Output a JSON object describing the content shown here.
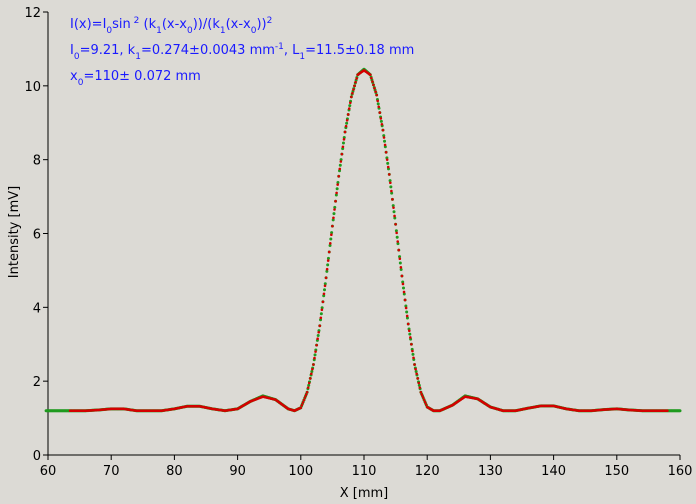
{
  "chart_data": {
    "type": "scatter",
    "xlabel": "X [mm]",
    "ylabel": "Intensity [mV]",
    "xlim": [
      60,
      160
    ],
    "ylim": [
      0,
      12
    ],
    "xticks": [
      60,
      70,
      80,
      90,
      100,
      110,
      120,
      130,
      140,
      150,
      160
    ],
    "yticks": [
      0,
      2,
      4,
      6,
      8,
      10,
      12
    ],
    "grid": false,
    "colors": {
      "data": "#1f9a1f",
      "fit": "#d40000",
      "annotation": "#1a1aff",
      "background": "#dcdad5"
    },
    "annotations": {
      "line1": {
        "a": "I(x)=I",
        "a_sub": "0",
        "b": "sin",
        "b_sup": " 2",
        "c": " (k",
        "c_sub": "1",
        "d": "(x-x",
        "d_sub": "0",
        "e": "))/(k",
        "e_sub": "1",
        "f": "(x-x",
        "f_sub": "0",
        "g": "))",
        "g_sup": "2"
      },
      "line2": {
        "a": "I",
        "a_sub": "0",
        "b": "=9.21,  k",
        "b_sub": "1",
        "c": "=0.274±0.0043 mm",
        "c_sup": "-1",
        "d": ",   L",
        "d_sub": "1",
        "e": "=11.5±0.18 mm"
      },
      "line3": {
        "a": "x",
        "a_sub": "0",
        "b": "=110±   0.072 mm"
      }
    },
    "series": [
      {
        "x": [
          59.7,
          62,
          64,
          66,
          68,
          70,
          72,
          74,
          76,
          78,
          80,
          82,
          84,
          86,
          88,
          90,
          92,
          94,
          96,
          98,
          99,
          100,
          101,
          102,
          103,
          104,
          105,
          106,
          107,
          108,
          109,
          110,
          111,
          112,
          113,
          114,
          115,
          116,
          117,
          118,
          119,
          120,
          121,
          122,
          124,
          126,
          128,
          130,
          132,
          134,
          136,
          138,
          140,
          142,
          144,
          146,
          148,
          150,
          152,
          154,
          156,
          158,
          160
        ],
        "y": [
          1.2,
          1.2,
          1.2,
          1.2,
          1.22,
          1.25,
          1.25,
          1.2,
          1.2,
          1.2,
          1.25,
          1.32,
          1.32,
          1.25,
          1.2,
          1.25,
          1.45,
          1.6,
          1.5,
          1.25,
          1.2,
          1.28,
          1.7,
          2.45,
          3.5,
          4.8,
          6.2,
          7.55,
          8.75,
          9.7,
          10.3,
          10.45,
          10.3,
          9.75,
          8.8,
          7.6,
          6.25,
          4.85,
          3.55,
          2.45,
          1.7,
          1.3,
          1.2,
          1.2,
          1.35,
          1.6,
          1.52,
          1.3,
          1.2,
          1.2,
          1.27,
          1.33,
          1.33,
          1.25,
          1.2,
          1.2,
          1.23,
          1.25,
          1.22,
          1.2,
          1.2,
          1.2,
          1.2
        ]
      },
      {
        "x": [
          63.5,
          64,
          66,
          68,
          70,
          72,
          74,
          76,
          78,
          80,
          82,
          84,
          86,
          88,
          90,
          92,
          94,
          96,
          98,
          99,
          100,
          101,
          102,
          103,
          104,
          105,
          106,
          107,
          108,
          109,
          110,
          111,
          112,
          113,
          114,
          115,
          116,
          117,
          118,
          119,
          120,
          121,
          122,
          124,
          126,
          128,
          130,
          132,
          134,
          136,
          138,
          140,
          142,
          144,
          146,
          148,
          150,
          152,
          154,
          156,
          158
        ],
        "y": [
          1.2,
          1.2,
          1.2,
          1.22,
          1.25,
          1.25,
          1.2,
          1.2,
          1.2,
          1.25,
          1.32,
          1.32,
          1.25,
          1.2,
          1.25,
          1.45,
          1.58,
          1.5,
          1.25,
          1.2,
          1.28,
          1.7,
          2.45,
          3.5,
          4.8,
          6.2,
          7.55,
          8.75,
          9.7,
          10.3,
          10.42,
          10.3,
          9.75,
          8.8,
          7.6,
          6.25,
          4.85,
          3.55,
          2.45,
          1.7,
          1.3,
          1.2,
          1.2,
          1.35,
          1.58,
          1.52,
          1.3,
          1.2,
          1.2,
          1.27,
          1.33,
          1.33,
          1.25,
          1.2,
          1.2,
          1.23,
          1.25,
          1.22,
          1.2,
          1.2,
          1.2
        ]
      }
    ]
  }
}
